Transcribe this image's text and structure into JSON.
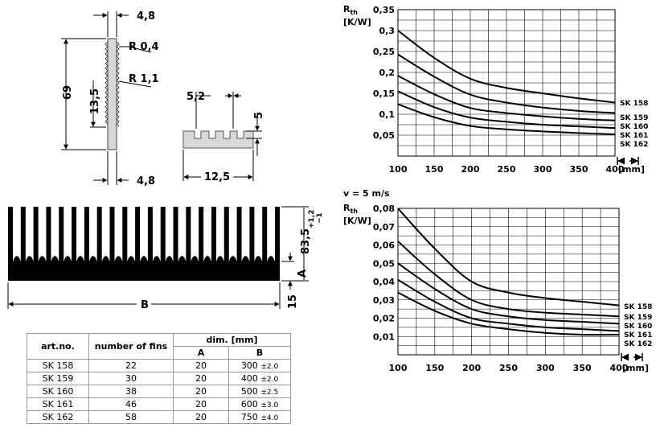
{
  "drawing": {
    "profile_dims": {
      "top_width": "4,8",
      "bottom_width": "4,8",
      "height": "69",
      "fin_length": "13,5",
      "radius_small": "R 0,4",
      "radius_large": "R 1,1"
    },
    "detail_dims": {
      "pitch": "5,2",
      "depth": "5",
      "width": "12,5"
    },
    "section_dims": {
      "overall_height": "83,5",
      "tol_plus": "+1,2",
      "tol_minus": "−1",
      "base_label": "A",
      "base_height": "15",
      "width_label": "B"
    }
  },
  "table": {
    "headers": {
      "art_no": "art.no.",
      "fins": "number of fins",
      "dim": "dim. [mm]",
      "a": "A",
      "b": "B"
    },
    "rows": [
      {
        "art": "SK 158",
        "fins": "22",
        "a": "20",
        "b": "300",
        "tol": "±2.0"
      },
      {
        "art": "SK 159",
        "fins": "30",
        "a": "20",
        "b": "400",
        "tol": "±2.0"
      },
      {
        "art": "SK 160",
        "fins": "38",
        "a": "20",
        "b": "500",
        "tol": "±2.5"
      },
      {
        "art": "SK 161",
        "fins": "46",
        "a": "20",
        "b": "600",
        "tol": "±3.0"
      },
      {
        "art": "SK 162",
        "fins": "58",
        "a": "20",
        "b": "750",
        "tol": "±4.0"
      }
    ]
  },
  "chart_data": [
    {
      "type": "line",
      "ylabel": "Rth [K/W]",
      "xunit": "[mm]",
      "xticks": [
        100,
        150,
        200,
        250,
        300,
        350,
        400
      ],
      "yticks": [
        "0,05",
        "0,1",
        "0,15",
        "0,2",
        "0,25",
        "0,3",
        "0,35"
      ],
      "xlim": [
        100,
        400
      ],
      "ylim": [
        0,
        0.35
      ],
      "x": [
        100,
        150,
        200,
        250,
        300,
        350,
        400
      ],
      "series": [
        {
          "name": "SK 158",
          "values": [
            0.3,
            0.235,
            0.185,
            0.163,
            0.15,
            0.138,
            0.128
          ]
        },
        {
          "name": "SK 159",
          "values": [
            0.243,
            0.19,
            0.147,
            0.128,
            0.116,
            0.108,
            0.103
          ]
        },
        {
          "name": "SK 160",
          "values": [
            0.192,
            0.148,
            0.115,
            0.103,
            0.095,
            0.089,
            0.085
          ]
        },
        {
          "name": "SK 161",
          "values": [
            0.155,
            0.117,
            0.092,
            0.082,
            0.075,
            0.071,
            0.067
          ]
        },
        {
          "name": "SK 162",
          "values": [
            0.124,
            0.093,
            0.072,
            0.064,
            0.059,
            0.055,
            0.052
          ]
        }
      ]
    },
    {
      "type": "line",
      "subtitle": "v = 5 m/s",
      "ylabel": "Rth [K/W]",
      "xunit": "[mm]",
      "xticks": [
        100,
        150,
        200,
        250,
        300,
        350,
        400
      ],
      "yticks": [
        "0,01",
        "0,02",
        "0,03",
        "0,04",
        "0,05",
        "0,06",
        "0,07",
        "0,08"
      ],
      "xlim": [
        100,
        400
      ],
      "ylim": [
        0,
        0.08
      ],
      "x": [
        100,
        150,
        200,
        250,
        300,
        350,
        400
      ],
      "series": [
        {
          "name": "SK 158",
          "values": [
            0.08,
            0.058,
            0.04,
            0.034,
            0.031,
            0.029,
            0.027
          ]
        },
        {
          "name": "SK 159",
          "values": [
            0.062,
            0.044,
            0.03,
            0.025,
            0.023,
            0.022,
            0.021
          ]
        },
        {
          "name": "SK 160",
          "values": [
            0.05,
            0.036,
            0.025,
            0.021,
            0.019,
            0.018,
            0.017
          ]
        },
        {
          "name": "SK 161",
          "values": [
            0.041,
            0.029,
            0.02,
            0.017,
            0.015,
            0.014,
            0.013
          ]
        },
        {
          "name": "SK 162",
          "values": [
            0.034,
            0.024,
            0.017,
            0.014,
            0.012,
            0.011,
            0.011
          ]
        }
      ]
    }
  ]
}
